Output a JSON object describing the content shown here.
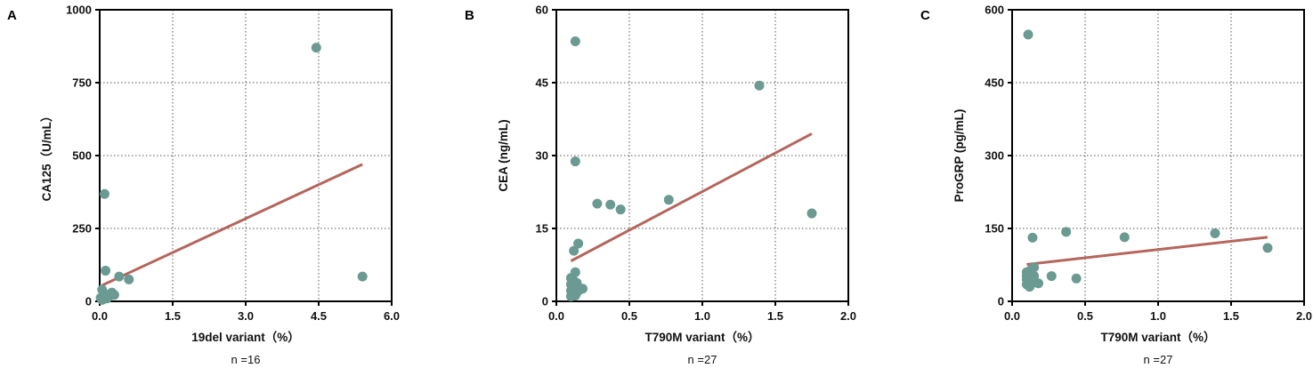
{
  "chart_data": [
    {
      "type": "scatter",
      "panel_label": "A",
      "xlabel": "19del variant（%）",
      "ylabel": "CA125（U/mL）",
      "n_label": "n =16",
      "xlim": [
        0,
        6
      ],
      "ylim": [
        0,
        1000
      ],
      "xticks": [
        "0.0",
        "1.5",
        "3.0",
        "4.5",
        "6.0"
      ],
      "xtick_values": [
        0,
        1.5,
        3,
        4.5,
        6
      ],
      "yticks": [
        "0",
        "250",
        "500",
        "750",
        "1000"
      ],
      "ytick_values": [
        0,
        250,
        500,
        750,
        1000
      ],
      "grid": true,
      "points": [
        [
          4.45,
          870
        ],
        [
          5.4,
          85
        ],
        [
          0.1,
          368
        ],
        [
          0.12,
          105
        ],
        [
          0.4,
          85
        ],
        [
          0.6,
          75
        ],
        [
          0.3,
          22
        ],
        [
          0.2,
          18
        ],
        [
          0.05,
          40
        ],
        [
          0.05,
          15
        ],
        [
          0.08,
          8
        ],
        [
          0.1,
          25
        ],
        [
          0.02,
          12
        ],
        [
          0.15,
          10
        ],
        [
          0.25,
          30
        ],
        [
          0.05,
          5
        ]
      ],
      "fit_line": [
        [
          0.05,
          55
        ],
        [
          5.4,
          470
        ]
      ],
      "point_color": "#6a9a92",
      "line_color": "#b5665c"
    },
    {
      "type": "scatter",
      "panel_label": "B",
      "xlabel": "T790M variant（%）",
      "ylabel": "CEA (ng/mL)",
      "n_label": "n =27",
      "xlim": [
        0,
        2
      ],
      "ylim": [
        0,
        60
      ],
      "xticks": [
        "0.0",
        "0.5",
        "1.0",
        "1.5",
        "2.0"
      ],
      "xtick_values": [
        0,
        0.5,
        1,
        1.5,
        2
      ],
      "yticks": [
        "0",
        "15",
        "30",
        "45",
        "60"
      ],
      "ytick_values": [
        0,
        15,
        30,
        45,
        60
      ],
      "grid": true,
      "points": [
        [
          0.13,
          53.5
        ],
        [
          1.39,
          44.4
        ],
        [
          0.13,
          28.8
        ],
        [
          0.77,
          20.9
        ],
        [
          0.28,
          20.1
        ],
        [
          0.37,
          19.9
        ],
        [
          0.44,
          18.9
        ],
        [
          1.75,
          18.1
        ],
        [
          0.15,
          11.9
        ],
        [
          0.12,
          10.4
        ],
        [
          0.13,
          6.0
        ],
        [
          0.1,
          4.8
        ],
        [
          0.12,
          4.2
        ],
        [
          0.14,
          3.8
        ],
        [
          0.1,
          3.5
        ],
        [
          0.11,
          3.0
        ],
        [
          0.13,
          3.2
        ],
        [
          0.15,
          2.8
        ],
        [
          0.18,
          2.6
        ],
        [
          0.1,
          2.2
        ],
        [
          0.12,
          2.0
        ],
        [
          0.14,
          1.8
        ],
        [
          0.11,
          1.5
        ],
        [
          0.13,
          1.2
        ],
        [
          0.1,
          1.0
        ],
        [
          0.12,
          2.5
        ],
        [
          0.16,
          2.4
        ]
      ],
      "fit_line": [
        [
          0.1,
          8.3
        ],
        [
          1.75,
          34.5
        ]
      ],
      "point_color": "#6a9a92",
      "line_color": "#b5665c"
    },
    {
      "type": "scatter",
      "panel_label": "C",
      "xlabel": "T790M variant（%）",
      "ylabel": "ProGRP (pg/mL)",
      "n_label": "n =27",
      "xlim": [
        0,
        2
      ],
      "ylim": [
        0,
        600
      ],
      "xticks": [
        "0.0",
        "0.5",
        "1.0",
        "1.5",
        "2.0"
      ],
      "xtick_values": [
        0,
        0.5,
        1,
        1.5,
        2
      ],
      "yticks": [
        "0",
        "150",
        "300",
        "450",
        "600"
      ],
      "ytick_values": [
        0,
        150,
        300,
        450,
        600
      ],
      "grid": true,
      "points": [
        [
          0.11,
          549
        ],
        [
          0.14,
          131
        ],
        [
          0.37,
          143
        ],
        [
          0.77,
          132
        ],
        [
          1.39,
          140
        ],
        [
          1.75,
          110
        ],
        [
          0.15,
          70
        ],
        [
          0.1,
          60
        ],
        [
          0.12,
          55
        ],
        [
          0.13,
          65
        ],
        [
          0.11,
          50
        ],
        [
          0.1,
          45
        ],
        [
          0.12,
          40
        ],
        [
          0.14,
          38
        ],
        [
          0.1,
          35
        ],
        [
          0.13,
          48
        ],
        [
          0.11,
          42
        ],
        [
          0.12,
          30
        ],
        [
          0.15,
          52
        ],
        [
          0.27,
          52
        ],
        [
          0.44,
          47
        ],
        [
          0.18,
          37
        ],
        [
          0.1,
          52
        ],
        [
          0.13,
          57
        ],
        [
          0.11,
          33
        ],
        [
          0.14,
          44
        ],
        [
          0.12,
          62
        ]
      ],
      "fit_line": [
        [
          0.1,
          76
        ],
        [
          1.75,
          132
        ]
      ],
      "point_color": "#6a9a92",
      "line_color": "#b5665c"
    }
  ]
}
